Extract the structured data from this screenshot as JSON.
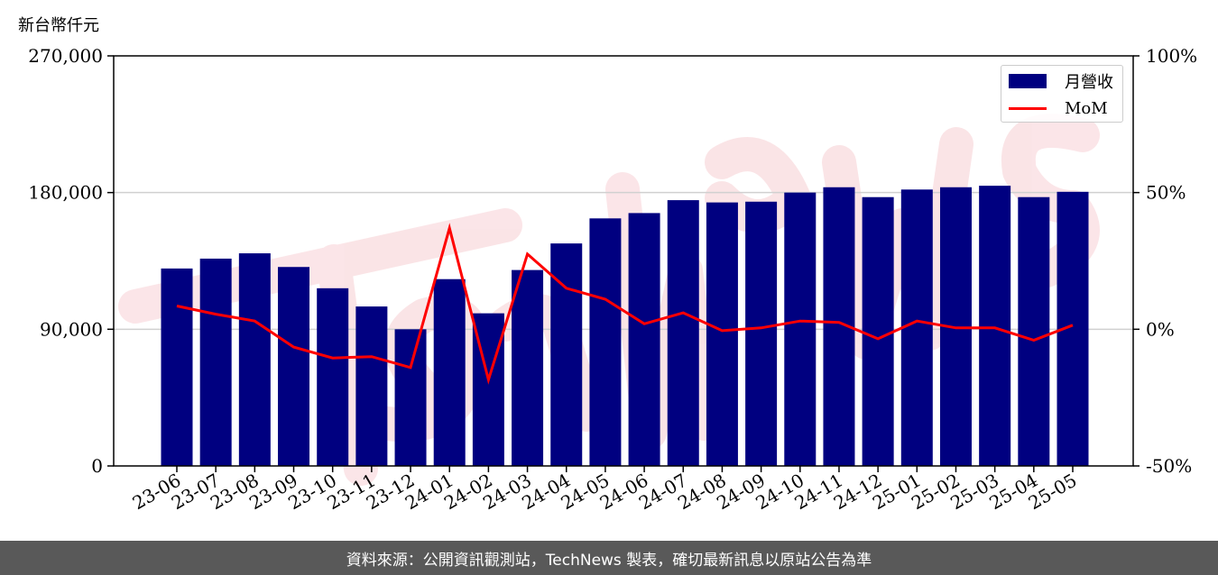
{
  "chart_data": {
    "type": "bar",
    "y_unit_label": "新台幣仟元",
    "categories": [
      "23-06",
      "23-07",
      "23-08",
      "23-09",
      "23-10",
      "23-11",
      "23-12",
      "24-01",
      "24-02",
      "24-03",
      "24-04",
      "24-05",
      "24-06",
      "24-07",
      "24-08",
      "24-09",
      "24-10",
      "24-11",
      "24-12",
      "25-01",
      "25-02",
      "25-03",
      "25-04",
      "25-05"
    ],
    "series": [
      {
        "name": "月營收",
        "kind": "bar",
        "axis": "left",
        "color": "#000080",
        "values": [
          130000,
          136500,
          140000,
          131000,
          117000,
          105000,
          90000,
          123000,
          100500,
          129000,
          146500,
          163000,
          166500,
          175000,
          173500,
          174000,
          180000,
          183500,
          177000,
          182000,
          183500,
          184500,
          177000,
          180500
        ]
      },
      {
        "name": "MoM",
        "kind": "line",
        "axis": "right",
        "color": "#ff0000",
        "values": [
          8.5,
          5.5,
          3.0,
          -6.5,
          -10.5,
          -10.0,
          -14.0,
          37.0,
          -18.5,
          27.5,
          15.0,
          11.0,
          2.0,
          6.0,
          -0.5,
          0.5,
          3.0,
          2.5,
          -3.5,
          3.0,
          0.5,
          0.5,
          -4.0,
          1.5
        ]
      }
    ],
    "y_left": {
      "min": 0,
      "max": 270000,
      "ticks": [
        0,
        90000,
        180000,
        270000
      ],
      "tick_labels": [
        "0",
        "90,000",
        "180,000",
        "270,000"
      ]
    },
    "y_right": {
      "min": -50,
      "max": 100,
      "ticks": [
        -50,
        0,
        50,
        100
      ],
      "tick_labels": [
        "-50%",
        "0%",
        "50%",
        "100%"
      ]
    },
    "grid": "horizontal",
    "legend_position": "top-right"
  },
  "footer": "資料來源：公開資訊觀測站，TechNews 製表，確切最新訊息以原站公告為準"
}
